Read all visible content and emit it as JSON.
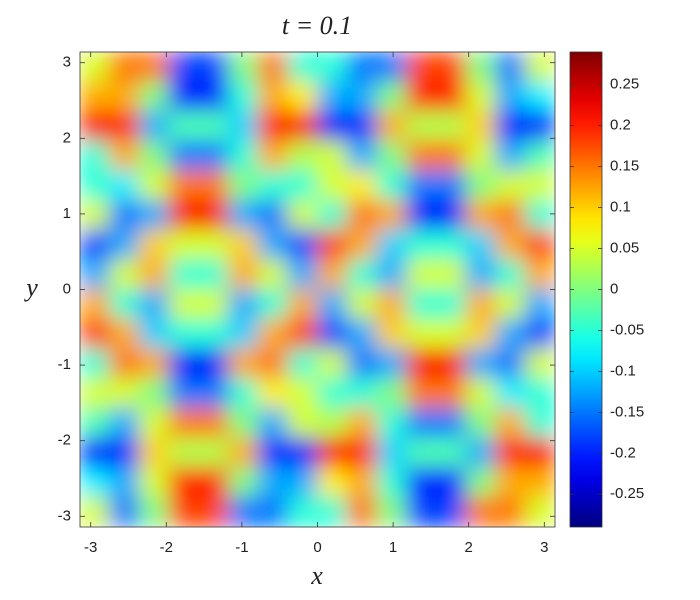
{
  "chart_data": {
    "type": "heatmap",
    "title": "t = 0.1",
    "x_label": "x",
    "y_label": "y",
    "colormap": "jet",
    "xlim": [
      -3.1416,
      3.1416
    ],
    "ylim": [
      -3.1416,
      3.1416
    ],
    "xticks": [
      -3,
      -2,
      -1,
      0,
      1,
      2,
      3
    ],
    "yticks": [
      -3,
      -2,
      -1,
      0,
      1,
      2,
      3
    ],
    "clim": [
      -0.29,
      0.29
    ],
    "cticks": [
      -0.25,
      -0.2,
      -0.15,
      -0.1,
      -0.05,
      0,
      0.05,
      0.1,
      0.15,
      0.2,
      0.25
    ],
    "z": [
      [
        0.05,
        0.15,
        0.15,
        -0.18,
        -0.18,
        0,
        0.15,
        -0.05,
        -0.05,
        -0.15,
        -0.15,
        0.18,
        0.18,
        0,
        -0.15,
        0.05
      ],
      [
        0.12,
        0.12,
        0,
        -0.2,
        -0.2,
        -0.05,
        0.12,
        0.08,
        -0.12,
        -0.12,
        0,
        0.2,
        0.2,
        0.05,
        -0.12,
        -0.08
      ],
      [
        0.22,
        0.2,
        -0.12,
        -0.03,
        -0.03,
        -0.1,
        0.2,
        0.22,
        -0.22,
        -0.2,
        0.12,
        0.03,
        0.03,
        0.1,
        -0.2,
        -0.22
      ],
      [
        -0.05,
        0.12,
        0,
        -0.15,
        -0.15,
        -0.05,
        0.12,
        0.03,
        0.05,
        -0.12,
        0,
        0.15,
        0.15,
        0.05,
        -0.12,
        -0.03
      ],
      [
        -0.05,
        -0.08,
        0.05,
        0.15,
        0.15,
        0,
        -0.05,
        -0.05,
        0.05,
        0.08,
        -0.05,
        -0.15,
        -0.15,
        0,
        0.05,
        0.05
      ],
      [
        0.05,
        -0.15,
        -0.12,
        0.22,
        0.22,
        -0.12,
        -0.15,
        0.05,
        -0.05,
        0.15,
        0.12,
        -0.22,
        -0.22,
        0.12,
        0.15,
        -0.05
      ],
      [
        -0.18,
        -0.12,
        0.1,
        0.05,
        0.05,
        0.1,
        -0.12,
        -0.18,
        0.18,
        0.12,
        -0.1,
        -0.05,
        -0.05,
        -0.1,
        0.12,
        0.18
      ],
      [
        -0.12,
        0.05,
        0.12,
        -0.05,
        -0.05,
        0.12,
        0.05,
        -0.12,
        0.12,
        -0.05,
        -0.12,
        0.05,
        0.05,
        -0.12,
        -0.05,
        0.12
      ],
      [
        0.12,
        -0.05,
        -0.12,
        0.05,
        0.05,
        -0.12,
        -0.05,
        0.12,
        -0.12,
        0.05,
        0.12,
        -0.05,
        -0.05,
        0.12,
        0.05,
        -0.12
      ],
      [
        0.18,
        0.12,
        -0.1,
        -0.05,
        -0.05,
        -0.1,
        0.12,
        0.18,
        -0.18,
        -0.12,
        0.1,
        0.05,
        0.05,
        0.1,
        -0.12,
        -0.18
      ],
      [
        -0.05,
        0.15,
        0.12,
        -0.22,
        -0.22,
        0.12,
        0.15,
        -0.05,
        0.05,
        -0.15,
        -0.12,
        0.22,
        0.22,
        -0.12,
        -0.15,
        0.05
      ],
      [
        0.05,
        0.05,
        0,
        -0.15,
        -0.15,
        -0.05,
        0.08,
        0.05,
        -0.05,
        -0.05,
        0,
        0.15,
        0.15,
        0.05,
        -0.08,
        -0.05
      ],
      [
        -0.03,
        -0.12,
        0.05,
        0.15,
        0.15,
        0,
        -0.12,
        0.05,
        0.03,
        0.12,
        -0.05,
        -0.15,
        -0.15,
        0,
        0.12,
        -0.05
      ],
      [
        -0.22,
        -0.2,
        0.1,
        0.03,
        0.03,
        0.12,
        -0.2,
        -0.22,
        0.22,
        0.2,
        -0.1,
        -0.03,
        -0.03,
        -0.12,
        0.2,
        0.22
      ],
      [
        -0.08,
        -0.12,
        0.05,
        0.2,
        0.2,
        0,
        -0.12,
        -0.12,
        0.08,
        0.12,
        -0.05,
        -0.2,
        -0.2,
        0,
        0.12,
        0.12
      ],
      [
        0.05,
        -0.15,
        0,
        0.18,
        0.18,
        -0.15,
        -0.15,
        -0.05,
        -0.05,
        0.15,
        0,
        -0.18,
        -0.18,
        0.15,
        0.15,
        0.05
      ]
    ]
  }
}
